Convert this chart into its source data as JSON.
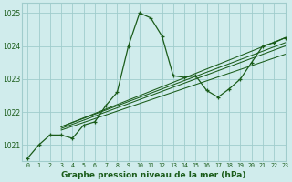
{
  "title": "Graphe pression niveau de la mer (hPa)",
  "background_color": "#d0ecec",
  "grid_color": "#a0cccc",
  "line_color": "#1a5c1a",
  "xlim": [
    -0.5,
    23
  ],
  "ylim": [
    1020.5,
    1025.3
  ],
  "yticks": [
    1021,
    1022,
    1023,
    1024,
    1025
  ],
  "xticks": [
    0,
    1,
    2,
    3,
    4,
    5,
    6,
    7,
    8,
    9,
    10,
    11,
    12,
    13,
    14,
    15,
    16,
    17,
    18,
    19,
    20,
    21,
    22,
    23
  ],
  "main_series": [
    1020.6,
    1021.0,
    1021.3,
    1021.3,
    1021.2,
    1021.6,
    1021.7,
    1022.2,
    1022.6,
    1024.0,
    1025.0,
    1024.85,
    1024.3,
    1023.1,
    1023.05,
    1023.1,
    1022.65,
    1022.45,
    1022.7,
    1023.0,
    1023.5,
    1024.0,
    1024.1,
    1024.25
  ],
  "trend_lines": [
    {
      "x0": 3,
      "y0": 1021.55,
      "x1": 23,
      "y1": 1024.25
    },
    {
      "x0": 3,
      "y0": 1021.55,
      "x1": 23,
      "y1": 1024.1
    },
    {
      "x0": 3,
      "y0": 1021.5,
      "x1": 23,
      "y1": 1024.0
    },
    {
      "x0": 3,
      "y0": 1021.45,
      "x1": 23,
      "y1": 1023.75
    }
  ]
}
